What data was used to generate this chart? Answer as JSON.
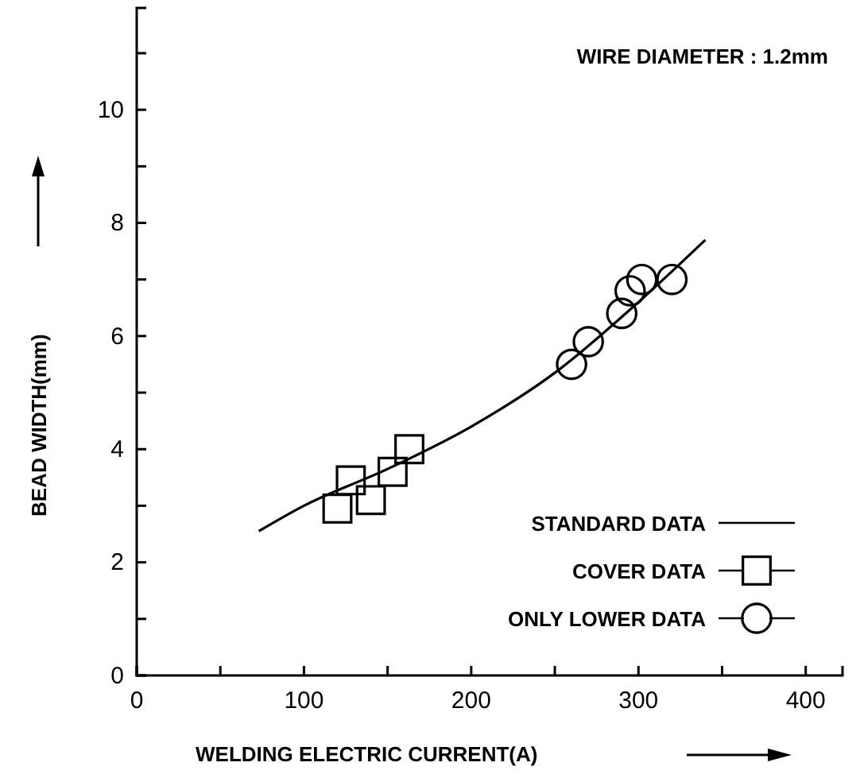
{
  "chart_data": {
    "type": "scatter",
    "xlabel": "WELDING ELECTRIC CURRENT(A)",
    "ylabel": "BEAD WIDTH(mm)",
    "annotations": [
      "WIRE DIAMETER : 1.2mm"
    ],
    "xlim": [
      0,
      422
    ],
    "ylim": [
      0,
      11.8
    ],
    "xticks": [
      0,
      {
        "value": 50,
        "label": null
      },
      100,
      {
        "value": 150,
        "label": null
      },
      200,
      {
        "value": 250,
        "label": null
      },
      300,
      {
        "value": 350,
        "label": null
      },
      400
    ],
    "yticks": [
      0,
      {
        "value": 1,
        "label": null
      },
      2,
      {
        "value": 3,
        "label": null
      },
      4,
      {
        "value": 5,
        "label": null
      },
      6,
      {
        "value": 7,
        "label": null
      },
      8,
      {
        "value": 9,
        "label": null
      },
      10,
      {
        "value": 11,
        "label": null
      }
    ],
    "legend": "bottom right",
    "grid": false,
    "series": [
      {
        "name": "STANDARD DATA",
        "type": "line",
        "marker": "none",
        "line_style": "solid",
        "color": "#000000",
        "x": [
          73,
          100,
          150,
          200,
          250,
          300,
          340
        ],
        "values": [
          2.55,
          3.0,
          3.65,
          4.4,
          5.35,
          6.6,
          7.7
        ]
      },
      {
        "name": "COVER DATA",
        "marker": "square",
        "color": "#000000",
        "x": [
          120,
          128,
          140,
          153,
          163
        ],
        "values": [
          2.95,
          3.45,
          3.1,
          3.6,
          4.0
        ]
      },
      {
        "name": "ONLY LOWER DATA",
        "marker": "circle",
        "color": "#000000",
        "x": [
          260,
          270,
          290,
          295,
          302,
          320
        ],
        "values": [
          5.5,
          5.9,
          6.4,
          6.8,
          7.0,
          7.0
        ]
      }
    ]
  }
}
